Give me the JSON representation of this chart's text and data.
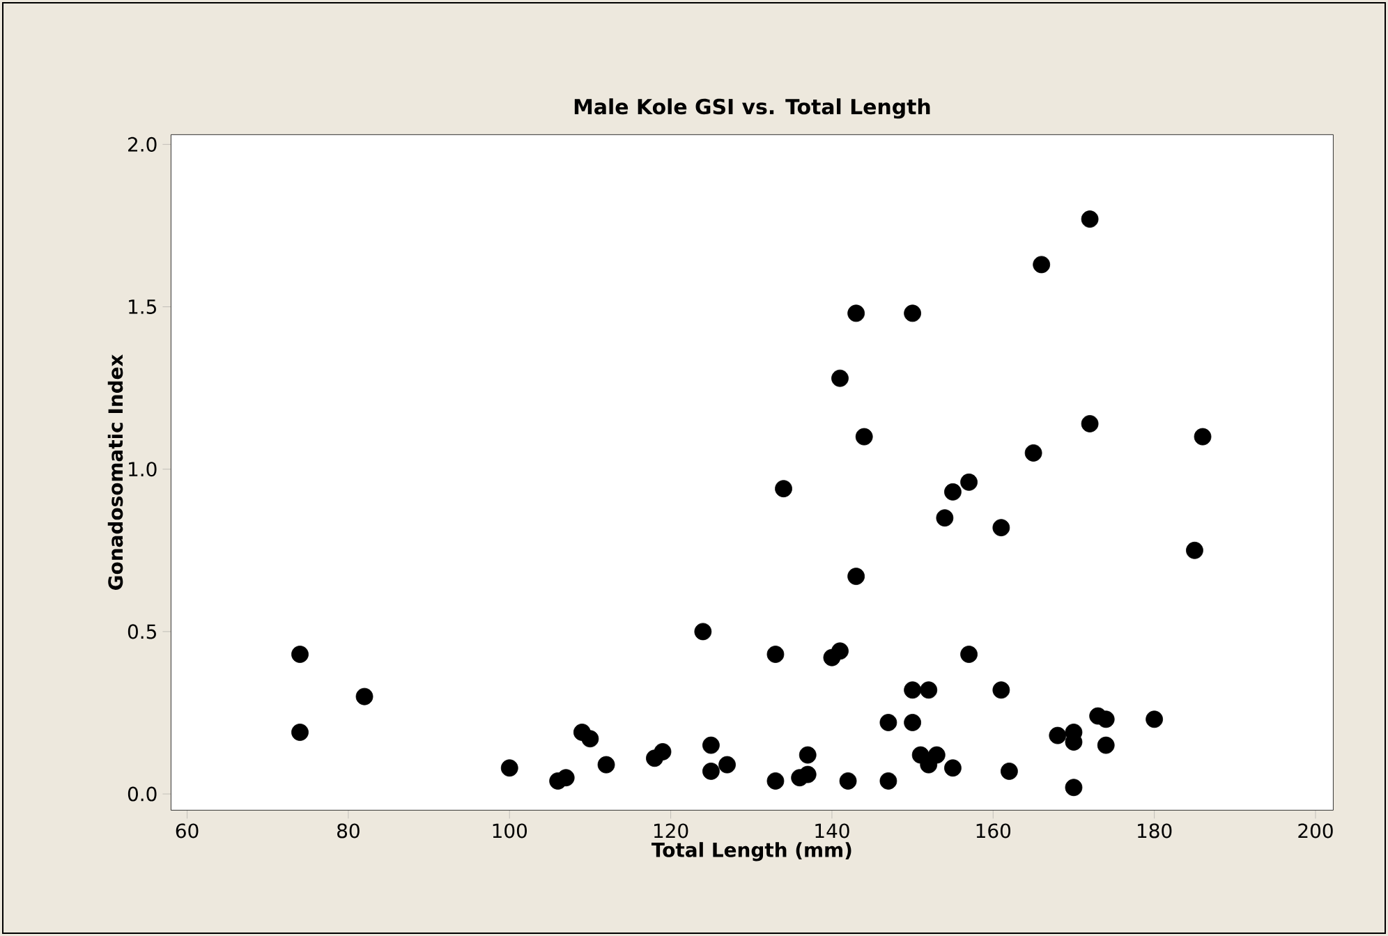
{
  "chart_data": {
    "type": "scatter",
    "title": "Male Kole GSI vs. Total Length",
    "xlabel": "Total Length (mm)",
    "ylabel": "Gonadosomatic Index",
    "x": [
      74,
      74,
      82,
      100,
      106,
      107,
      109,
      110,
      112,
      118,
      119,
      124,
      125,
      125,
      127,
      133,
      133,
      134,
      136,
      137,
      137,
      140,
      141,
      141,
      142,
      143,
      143,
      144,
      147,
      147,
      150,
      150,
      150,
      151,
      152,
      152,
      153,
      154,
      155,
      155,
      157,
      157,
      161,
      161,
      162,
      165,
      166,
      168,
      170,
      170,
      170,
      172,
      172,
      173,
      174,
      174,
      180,
      185,
      186
    ],
    "values": [
      0.43,
      0.19,
      0.3,
      0.08,
      0.04,
      0.05,
      0.19,
      0.17,
      0.09,
      0.11,
      0.13,
      0.5,
      0.15,
      0.07,
      0.09,
      0.04,
      0.43,
      0.94,
      0.05,
      0.06,
      0.12,
      0.42,
      0.44,
      1.28,
      0.04,
      1.48,
      0.67,
      1.1,
      0.22,
      0.04,
      1.48,
      0.32,
      0.22,
      0.12,
      0.32,
      0.09,
      0.12,
      0.85,
      0.93,
      0.08,
      0.96,
      0.43,
      0.82,
      0.32,
      0.07,
      1.05,
      1.63,
      0.18,
      0.19,
      0.16,
      0.02,
      1.77,
      1.14,
      0.24,
      0.23,
      0.15,
      0.23,
      0.75,
      1.1
    ],
    "color": "#000000",
    "marker": "circle",
    "xlim": [
      58,
      202.2
    ],
    "ylim": [
      -0.05,
      2.03
    ],
    "xticks": [
      60,
      80,
      100,
      120,
      140,
      160,
      180,
      200
    ],
    "yticks": [
      {
        "value": 0,
        "label": "0.0"
      },
      {
        "value": 0.5,
        "label": "0.5"
      },
      {
        "value": 1,
        "label": "1.0"
      },
      {
        "value": 1.5,
        "label": "1.5"
      },
      {
        "value": 2,
        "label": "2.0"
      }
    ],
    "grid": false
  }
}
